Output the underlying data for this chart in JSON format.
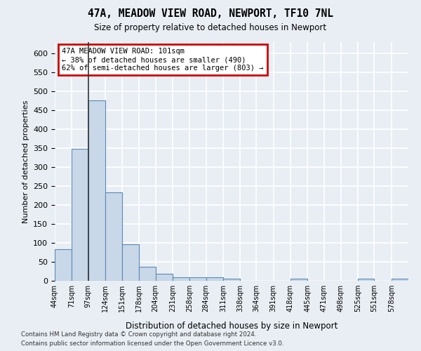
{
  "title_line1": "47A, MEADOW VIEW ROAD, NEWPORT, TF10 7NL",
  "title_line2": "Size of property relative to detached houses in Newport",
  "xlabel": "Distribution of detached houses by size in Newport",
  "ylabel": "Number of detached properties",
  "footer_line1": "Contains HM Land Registry data © Crown copyright and database right 2024.",
  "footer_line2": "Contains public sector information licensed under the Open Government Licence v3.0.",
  "annotation_line1": "47A MEADOW VIEW ROAD: 101sqm",
  "annotation_line2": "← 38% of detached houses are smaller (490)",
  "annotation_line3": "62% of semi-detached houses are larger (803) →",
  "bar_edges": [
    44,
    71,
    97,
    124,
    151,
    178,
    204,
    231,
    258,
    284,
    311,
    338,
    364,
    391,
    418,
    445,
    471,
    498,
    525,
    551,
    578,
    605
  ],
  "bar_heights": [
    83,
    348,
    476,
    234,
    96,
    37,
    18,
    9,
    9,
    9,
    5,
    0,
    0,
    0,
    6,
    0,
    0,
    0,
    5,
    0,
    5
  ],
  "bar_color": "#c8d8e8",
  "bar_edge_color": "#5a8ab5",
  "property_line_x": 97,
  "ylim": [
    0,
    630
  ],
  "yticks": [
    0,
    50,
    100,
    150,
    200,
    250,
    300,
    350,
    400,
    450,
    500,
    550,
    600
  ],
  "tick_labels": [
    "44sqm",
    "71sqm",
    "97sqm",
    "124sqm",
    "151sqm",
    "178sqm",
    "204sqm",
    "231sqm",
    "258sqm",
    "284sqm",
    "311sqm",
    "338sqm",
    "364sqm",
    "391sqm",
    "418sqm",
    "445sqm",
    "471sqm",
    "498sqm",
    "525sqm",
    "551sqm",
    "578sqm"
  ],
  "background_color": "#e8eef4",
  "grid_color": "#ffffff",
  "annotation_box_color": "#ffffff",
  "annotation_box_edge_color": "#cc0000",
  "property_line_color": "#333333"
}
